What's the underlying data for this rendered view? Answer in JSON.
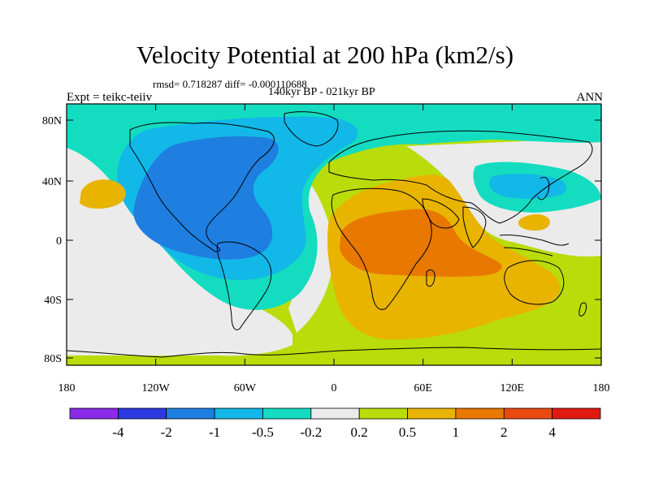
{
  "header": {
    "title": "Velocity Potential at 200 hPa (km2/s)",
    "stats": "rmsd= 0.718287 diff= -0.000110688",
    "period": "140kyr BP - 021kyr BP",
    "experiment": "Expt = teikc-teiiv",
    "season": "ANN"
  },
  "axes": {
    "lat_labels": [
      "80N",
      "40N",
      "0",
      "40S",
      "80S"
    ],
    "lon_labels": [
      "180",
      "120W",
      "60W",
      "0",
      "60E",
      "120E",
      "180"
    ]
  },
  "colorbar": {
    "labels": [
      "-4",
      "-2",
      "-1",
      "-0.5",
      "-0.2",
      "0.2",
      "0.5",
      "1",
      "2",
      "4"
    ],
    "colors": [
      "#8a2be8",
      "#2b3ae0",
      "#1e7fe0",
      "#12b8e8",
      "#14dcc0",
      "#ebebeb",
      "#b9dc0a",
      "#e8b400",
      "#e87800",
      "#e84a10",
      "#e01a10"
    ]
  }
}
